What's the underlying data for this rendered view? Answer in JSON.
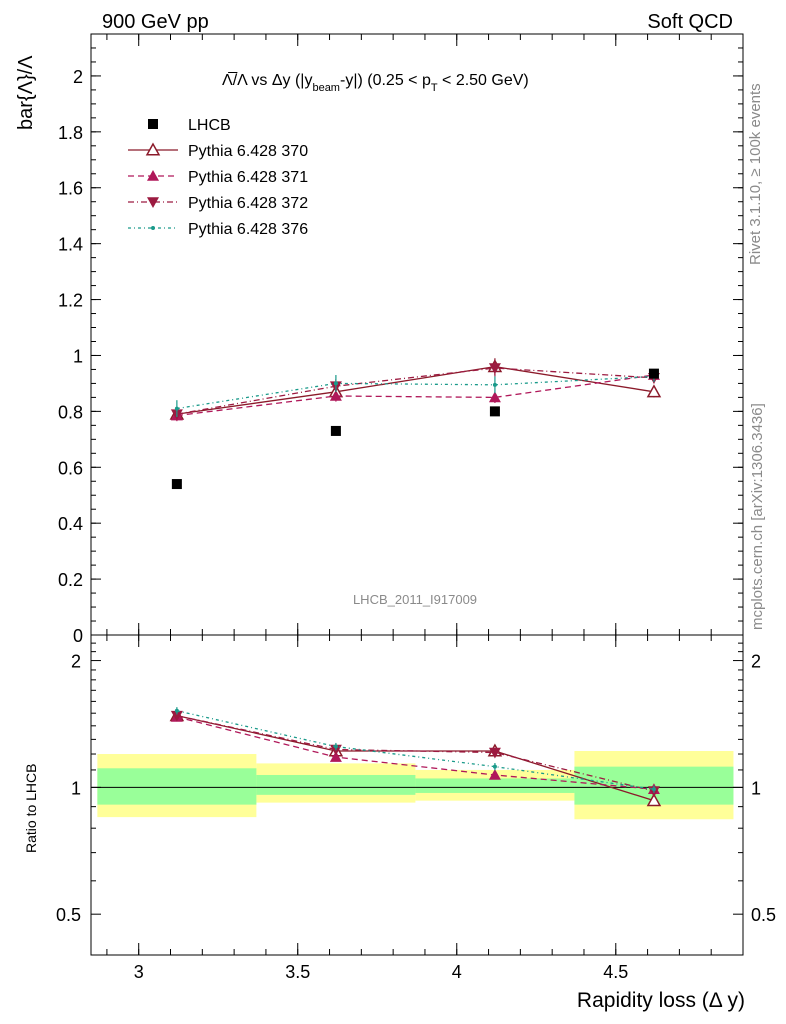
{
  "header": {
    "left": "900 GeV pp",
    "right": "Soft QCD"
  },
  "side": {
    "rivet": "Rivet 3.1.10, ≥ 100k events",
    "mcplots": "mcplots.cern.ch [arXiv:1306.3436]"
  },
  "plot": {
    "title": "Λ̅/Λ vs Δy (|y",
    "title_sub1": "beam",
    "title_mid": "-y|) (0.25 < p",
    "title_sub2": "T",
    "title_end": " < 2.50 GeV)",
    "ylabel": "bar{Λ}/Λ",
    "watermark": "LHCB_2011_I917009",
    "ratio_ylabel": "Ratio to LHCB",
    "xlabel": "Rapidity loss (Δ y)"
  },
  "chart_data": {
    "type": "scatter",
    "x": [
      3.12,
      3.62,
      4.12,
      4.62
    ],
    "xlim": [
      2.85,
      4.9
    ],
    "ylim": [
      0,
      2.15
    ],
    "xticks": [
      "3",
      "3.5",
      "4",
      "4.5"
    ],
    "yticks": [
      "0",
      "0.2",
      "0.4",
      "0.6",
      "0.8",
      "1",
      "1.2",
      "1.4",
      "1.6",
      "1.8",
      "2"
    ],
    "ratio_ylim": [
      0.4,
      2.3
    ],
    "ratio_yticks": [
      "0.5",
      "1",
      "2"
    ],
    "reference": {
      "name": "LHCB",
      "values": [
        0.54,
        0.73,
        0.8,
        0.935
      ],
      "marker": "square",
      "color": "#000000"
    },
    "series": [
      {
        "name": "Pythia 6.428 370",
        "values": [
          0.79,
          0.87,
          0.96,
          0.87
        ],
        "errors": [
          0.02,
          0.02,
          0.03,
          0.02
        ],
        "ratio": [
          1.48,
          1.22,
          1.22,
          0.93
        ],
        "color": "#8b1a2a",
        "dash": "",
        "marker": "triangle-open"
      },
      {
        "name": "Pythia 6.428 371",
        "values": [
          0.785,
          0.855,
          0.85,
          0.93
        ],
        "errors": [
          0.02,
          0.02,
          0.02,
          0.02
        ],
        "ratio": [
          1.47,
          1.18,
          1.07,
          0.99
        ],
        "color": "#b0185a",
        "dash": "6,4",
        "marker": "triangle-up"
      },
      {
        "name": "Pythia 6.428 372",
        "values": [
          0.79,
          0.89,
          0.955,
          0.92
        ],
        "errors": [
          0.02,
          0.025,
          0.03,
          0.02
        ],
        "ratio": [
          1.48,
          1.23,
          1.21,
          0.98
        ],
        "color": "#9c1a40",
        "dash": "6,3,1,3",
        "marker": "triangle-down"
      },
      {
        "name": "Pythia 6.428 376",
        "values": [
          0.81,
          0.9,
          0.895,
          0.925
        ],
        "errors": [
          0.03,
          0.03,
          0.03,
          0.02
        ],
        "ratio": [
          1.52,
          1.25,
          1.12,
          0.99
        ],
        "color": "#1a9a8a",
        "dash": "3,3,1,3",
        "marker": "dot"
      }
    ],
    "bands": [
      {
        "x0": 2.87,
        "x1": 3.37,
        "yellow": [
          0.85,
          1.2
        ],
        "green": [
          0.91,
          1.11
        ]
      },
      {
        "x0": 3.37,
        "x1": 3.87,
        "yellow": [
          0.92,
          1.14
        ],
        "green": [
          0.96,
          1.07
        ]
      },
      {
        "x0": 3.87,
        "x1": 4.37,
        "yellow": [
          0.93,
          1.1
        ],
        "green": [
          0.97,
          1.05
        ]
      },
      {
        "x0": 4.37,
        "x1": 4.87,
        "yellow": [
          0.84,
          1.22
        ],
        "green": [
          0.91,
          1.12
        ]
      }
    ]
  }
}
